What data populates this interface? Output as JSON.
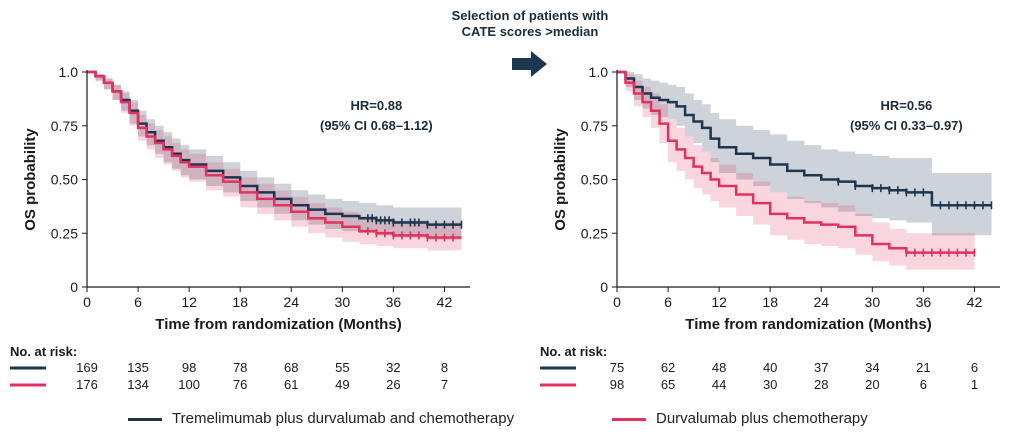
{
  "header": {
    "line1": "Selection of patients with",
    "line2": "CATE scores >median"
  },
  "colors": {
    "treme": "#1c3550",
    "durva": "#e0325f"
  },
  "legend": {
    "treme": "Tremelimumab plus durvalumab and chemotherapy",
    "durva": "Durvalumab plus chemotherapy"
  },
  "chart_data": [
    {
      "type": "line",
      "subtype": "kaplan-meier",
      "xlabel": "Time from randomization (Months)",
      "ylabel": "OS probability",
      "xlim": [
        0,
        45
      ],
      "ylim": [
        0,
        1.0
      ],
      "x_ticks": [
        "0",
        "6",
        "12",
        "18",
        "24",
        "30",
        "36",
        "42"
      ],
      "y_ticks": [
        "0",
        "0.25",
        "0.50",
        "0.75",
        "1.0"
      ],
      "annotation": [
        "HR=0.88",
        "(95% CI 0.68–1.12)"
      ],
      "risk_table": {
        "title": "No. at risk:",
        "rows": [
          [
            "169",
            "135",
            "98",
            "78",
            "68",
            "55",
            "32",
            "8"
          ],
          [
            "176",
            "134",
            "100",
            "76",
            "61",
            "49",
            "26",
            "7"
          ]
        ]
      },
      "series": [
        {
          "name": "Tremelimumab plus durvalumab and chemotherapy",
          "x": [
            0,
            1,
            2,
            3,
            4,
            5,
            6,
            7,
            8,
            9,
            10,
            11,
            12,
            14,
            16,
            18,
            20,
            22,
            24,
            26,
            28,
            30,
            32,
            34,
            36,
            38,
            40,
            42,
            44
          ],
          "y": [
            1.0,
            0.98,
            0.95,
            0.91,
            0.87,
            0.82,
            0.76,
            0.72,
            0.68,
            0.65,
            0.62,
            0.59,
            0.57,
            0.54,
            0.51,
            0.47,
            0.44,
            0.41,
            0.38,
            0.36,
            0.34,
            0.33,
            0.32,
            0.31,
            0.3,
            0.3,
            0.29,
            0.29,
            0.29
          ],
          "band_upper": [
            1.0,
            0.99,
            0.97,
            0.94,
            0.91,
            0.87,
            0.82,
            0.78,
            0.75,
            0.72,
            0.69,
            0.66,
            0.64,
            0.61,
            0.58,
            0.54,
            0.51,
            0.48,
            0.45,
            0.43,
            0.41,
            0.4,
            0.39,
            0.38,
            0.37,
            0.37,
            0.37,
            0.37,
            0.37
          ],
          "band_lower": [
            1.0,
            0.96,
            0.92,
            0.87,
            0.82,
            0.76,
            0.7,
            0.66,
            0.62,
            0.58,
            0.55,
            0.52,
            0.5,
            0.47,
            0.44,
            0.4,
            0.37,
            0.34,
            0.31,
            0.29,
            0.27,
            0.26,
            0.25,
            0.24,
            0.23,
            0.23,
            0.22,
            0.22,
            0.22
          ],
          "censor_x": [
            33,
            33.5,
            34,
            34.5,
            35,
            35.5,
            36,
            37,
            38,
            38.5,
            39,
            40,
            41,
            42,
            43,
            44
          ]
        },
        {
          "name": "Durvalumab plus chemotherapy",
          "x": [
            0,
            1,
            2,
            3,
            4,
            5,
            6,
            7,
            8,
            9,
            10,
            11,
            12,
            14,
            16,
            18,
            20,
            22,
            24,
            26,
            28,
            30,
            32,
            34,
            36,
            38,
            40,
            42,
            44
          ],
          "y": [
            1.0,
            0.98,
            0.95,
            0.91,
            0.86,
            0.81,
            0.74,
            0.7,
            0.67,
            0.64,
            0.61,
            0.58,
            0.56,
            0.52,
            0.49,
            0.44,
            0.41,
            0.38,
            0.35,
            0.32,
            0.3,
            0.28,
            0.26,
            0.25,
            0.24,
            0.24,
            0.23,
            0.23,
            0.23
          ],
          "band_upper": [
            1.0,
            0.99,
            0.97,
            0.94,
            0.9,
            0.86,
            0.8,
            0.76,
            0.73,
            0.7,
            0.67,
            0.64,
            0.62,
            0.58,
            0.55,
            0.51,
            0.48,
            0.45,
            0.42,
            0.39,
            0.37,
            0.35,
            0.33,
            0.32,
            0.31,
            0.31,
            0.3,
            0.3,
            0.3
          ],
          "band_lower": [
            1.0,
            0.96,
            0.92,
            0.87,
            0.81,
            0.75,
            0.68,
            0.64,
            0.6,
            0.57,
            0.54,
            0.51,
            0.49,
            0.45,
            0.42,
            0.37,
            0.34,
            0.31,
            0.28,
            0.25,
            0.23,
            0.21,
            0.2,
            0.19,
            0.18,
            0.18,
            0.17,
            0.17,
            0.17
          ],
          "censor_x": [
            33,
            34,
            35,
            36,
            37,
            38,
            39,
            40,
            41,
            42,
            43
          ]
        }
      ]
    },
    {
      "type": "line",
      "subtype": "kaplan-meier",
      "xlabel": "Time from randomization (Months)",
      "ylabel": "OS probability",
      "xlim": [
        0,
        45
      ],
      "ylim": [
        0,
        1.0
      ],
      "x_ticks": [
        "0",
        "6",
        "12",
        "18",
        "24",
        "30",
        "36",
        "42"
      ],
      "y_ticks": [
        "0",
        "0.25",
        "0.50",
        "0.75",
        "1.0"
      ],
      "annotation": [
        "HR=0.56",
        "(95% CI 0.33–0.97)"
      ],
      "risk_table": {
        "title": "No. at risk:",
        "rows": [
          [
            "75",
            "62",
            "48",
            "40",
            "37",
            "34",
            "21",
            "6"
          ],
          [
            "98",
            "65",
            "44",
            "30",
            "28",
            "20",
            "6",
            "1"
          ]
        ]
      },
      "series": [
        {
          "name": "Tremelimumab plus durvalumab and chemotherapy",
          "x": [
            0,
            1,
            2,
            3,
            4,
            5,
            6,
            7,
            8,
            9,
            10,
            11,
            12,
            14,
            16,
            18,
            20,
            22,
            24,
            26,
            28,
            30,
            32,
            34,
            36,
            37,
            38,
            40,
            42,
            44
          ],
          "y": [
            1.0,
            0.97,
            0.93,
            0.9,
            0.88,
            0.87,
            0.86,
            0.84,
            0.8,
            0.77,
            0.74,
            0.69,
            0.65,
            0.62,
            0.6,
            0.57,
            0.54,
            0.52,
            0.5,
            0.49,
            0.47,
            0.46,
            0.45,
            0.44,
            0.44,
            0.38,
            0.38,
            0.38,
            0.38,
            0.38
          ],
          "band_upper": [
            1.0,
            1.0,
            0.99,
            0.97,
            0.96,
            0.95,
            0.94,
            0.93,
            0.9,
            0.87,
            0.85,
            0.81,
            0.78,
            0.75,
            0.73,
            0.71,
            0.68,
            0.66,
            0.64,
            0.63,
            0.62,
            0.61,
            0.6,
            0.6,
            0.6,
            0.53,
            0.53,
            0.53,
            0.53,
            0.53
          ],
          "band_lower": [
            1.0,
            0.93,
            0.87,
            0.83,
            0.8,
            0.79,
            0.78,
            0.75,
            0.7,
            0.67,
            0.63,
            0.58,
            0.53,
            0.5,
            0.47,
            0.44,
            0.41,
            0.39,
            0.37,
            0.35,
            0.33,
            0.32,
            0.31,
            0.3,
            0.3,
            0.24,
            0.24,
            0.24,
            0.24,
            0.24
          ],
          "censor_x": [
            26,
            28,
            30,
            31,
            32,
            33,
            34,
            35,
            36,
            38,
            39,
            40,
            41,
            42,
            43,
            44
          ]
        },
        {
          "name": "Durvalumab plus chemotherapy",
          "x": [
            0,
            1,
            2,
            3,
            4,
            5,
            6,
            7,
            8,
            9,
            10,
            11,
            12,
            14,
            16,
            18,
            20,
            22,
            24,
            26,
            28,
            30,
            32,
            34,
            36,
            38,
            40,
            42
          ],
          "y": [
            1.0,
            0.95,
            0.9,
            0.86,
            0.82,
            0.76,
            0.68,
            0.64,
            0.6,
            0.56,
            0.53,
            0.5,
            0.47,
            0.43,
            0.39,
            0.34,
            0.32,
            0.3,
            0.29,
            0.28,
            0.24,
            0.2,
            0.18,
            0.16,
            0.16,
            0.16,
            0.16,
            0.16
          ],
          "band_upper": [
            1.0,
            0.99,
            0.96,
            0.93,
            0.9,
            0.85,
            0.78,
            0.74,
            0.7,
            0.66,
            0.63,
            0.6,
            0.57,
            0.53,
            0.49,
            0.44,
            0.42,
            0.4,
            0.39,
            0.38,
            0.34,
            0.3,
            0.27,
            0.25,
            0.25,
            0.25,
            0.25,
            0.25
          ],
          "band_lower": [
            1.0,
            0.91,
            0.84,
            0.79,
            0.74,
            0.67,
            0.58,
            0.54,
            0.5,
            0.46,
            0.43,
            0.4,
            0.37,
            0.33,
            0.29,
            0.24,
            0.22,
            0.2,
            0.19,
            0.18,
            0.15,
            0.12,
            0.1,
            0.08,
            0.08,
            0.08,
            0.08,
            0.08
          ],
          "censor_x": [
            34,
            35,
            36,
            37,
            38,
            39,
            40,
            41,
            42
          ]
        }
      ]
    }
  ]
}
